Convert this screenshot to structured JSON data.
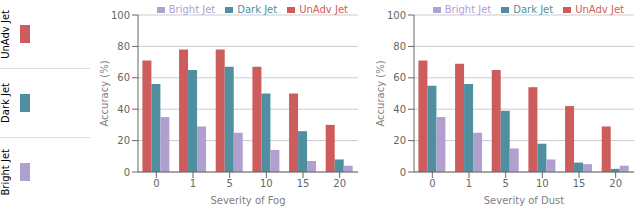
{
  "chart_data": [
    {
      "type": "bar",
      "categories": [
        "0",
        "1",
        "5",
        "10",
        "15",
        "20"
      ],
      "series": [
        {
          "name": "UnAdv Jet",
          "color": "#cd5c5c",
          "values": [
            71,
            78,
            78,
            67,
            50,
            30
          ]
        },
        {
          "name": "Dark Jet",
          "color": "#4f8fa0",
          "values": [
            56,
            65,
            67,
            50,
            26,
            8
          ]
        },
        {
          "name": "Bright Jet",
          "color": "#b0a0d0",
          "values": [
            35,
            29,
            25,
            14,
            7,
            4
          ]
        }
      ],
      "xlabel": "Severity of Fog",
      "ylabel": "Accuracy (%)",
      "ylim": [
        0,
        100
      ],
      "yticks": [
        0,
        20,
        40,
        60,
        80,
        100
      ],
      "grid": true,
      "legend": "upper right"
    },
    {
      "type": "bar",
      "categories": [
        "0",
        "1",
        "5",
        "10",
        "15",
        "20"
      ],
      "series": [
        {
          "name": "UnAdv Jet",
          "color": "#cd5c5c",
          "values": [
            71,
            69,
            65,
            54,
            42,
            29
          ]
        },
        {
          "name": "Dark Jet",
          "color": "#4f8fa0",
          "values": [
            55,
            56,
            39,
            18,
            6,
            2
          ]
        },
        {
          "name": "Bright Jet",
          "color": "#b0a0d0",
          "values": [
            35,
            25,
            15,
            8,
            5,
            4
          ]
        }
      ],
      "xlabel": "Severity of Dust",
      "ylabel": "Accuracy (%)",
      "ylim": [
        0,
        100
      ],
      "yticks": [
        0,
        20,
        40,
        60,
        80,
        100
      ],
      "grid": true,
      "legend": "upper right"
    }
  ]
}
